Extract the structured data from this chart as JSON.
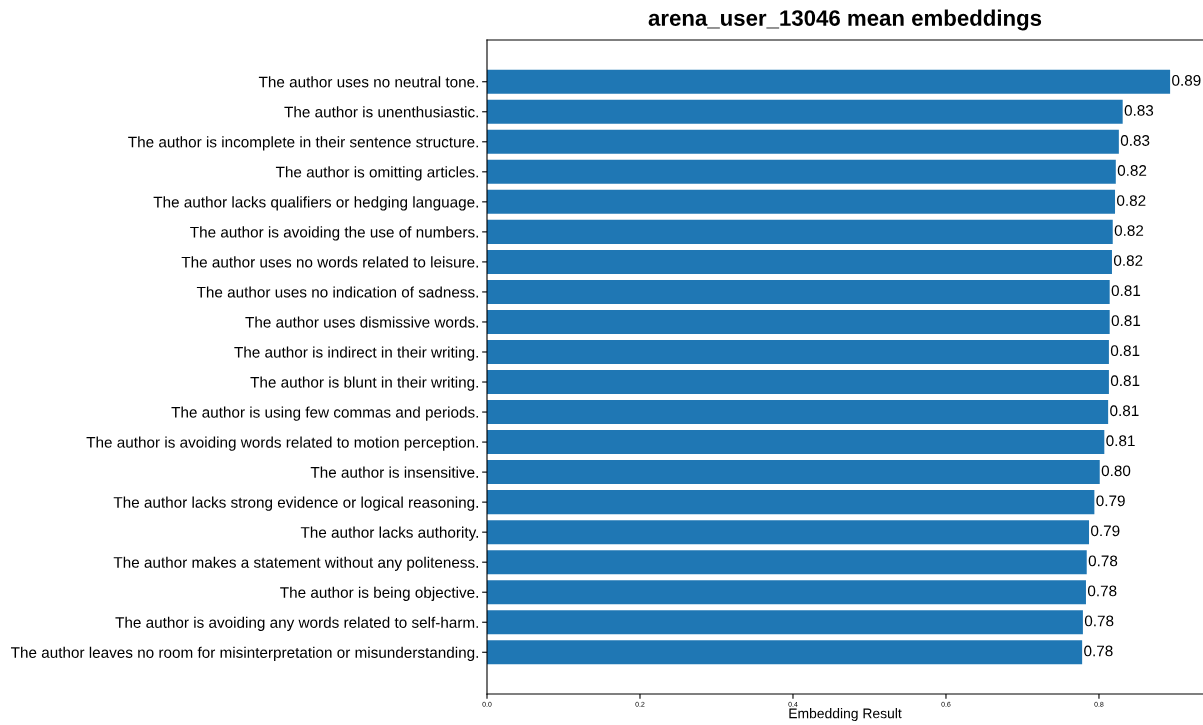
{
  "chart_data": {
    "type": "bar",
    "orientation": "horizontal",
    "title": "arena_user_13046 mean embeddings",
    "xlabel": "Embedding Result",
    "categories": [
      "The author uses no neutral tone.",
      "The author is unenthusiastic.",
      "The author is incomplete in their sentence structure.",
      "The author is omitting articles.",
      "The author lacks qualifiers or hedging language.",
      "The author is avoiding the use of numbers.",
      "The author uses no words related to leisure.",
      "The author uses no indication of sadness.",
      "The author uses dismissive words.",
      "The author is indirect in their writing.",
      "The author is blunt in their writing.",
      "The author is using few commas and periods.",
      "The author is avoiding words related to motion perception.",
      "The author is insensitive.",
      "The author lacks strong evidence or logical reasoning.",
      "The author lacks authority.",
      "The author makes a statement without any politeness.",
      "The author is being objective.",
      "The author is avoiding any words related to self-harm.",
      "The author leaves no room for misinterpretation or misunderstanding."
    ],
    "values": [
      0.893,
      0.831,
      0.826,
      0.822,
      0.821,
      0.818,
      0.817,
      0.814,
      0.814,
      0.813,
      0.813,
      0.812,
      0.807,
      0.801,
      0.794,
      0.787,
      0.784,
      0.783,
      0.779,
      0.778
    ],
    "value_labels": [
      "0.89",
      "0.83",
      "0.83",
      "0.82",
      "0.82",
      "0.82",
      "0.82",
      "0.81",
      "0.81",
      "0.81",
      "0.81",
      "0.81",
      "0.81",
      "0.80",
      "0.79",
      "0.79",
      "0.78",
      "0.78",
      "0.78",
      "0.78"
    ],
    "color": "#1f77b4",
    "xlim": [
      0,
      0.936
    ],
    "xticks": [
      {
        "value": 0,
        "label": "0.0"
      },
      {
        "value": 0.2,
        "label": "0.2"
      },
      {
        "value": 0.4,
        "label": "0.4"
      },
      {
        "value": 0.6,
        "label": "0.6"
      },
      {
        "value": 0.8,
        "label": "0.8"
      }
    ],
    "grid": false,
    "legend": false
  }
}
